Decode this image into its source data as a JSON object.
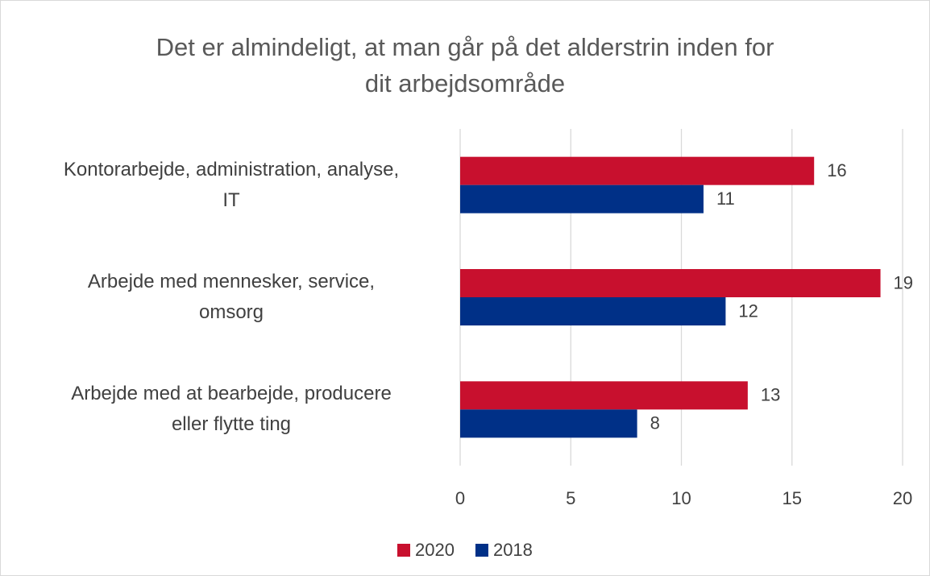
{
  "chart_data": {
    "type": "hbar",
    "title": "Det er almindeligt, at man går på det alderstrin inden for\ndit arbejdsområde",
    "categories": [
      "Kontorarbejde, administration, analyse,\nIT",
      "Arbejde med mennesker, service,\nomsorg",
      "Arbejde med at bearbejde, producere\neller flytte ting"
    ],
    "series": [
      {
        "name": "2020",
        "color": "#c8102e",
        "values": [
          16,
          19,
          13
        ]
      },
      {
        "name": "2018",
        "color": "#003087",
        "values": [
          11,
          12,
          8
        ]
      }
    ],
    "xlim": [
      0,
      20
    ],
    "xticks": [
      0,
      5,
      10,
      15,
      20
    ],
    "grid": true,
    "legend": "bottom"
  }
}
